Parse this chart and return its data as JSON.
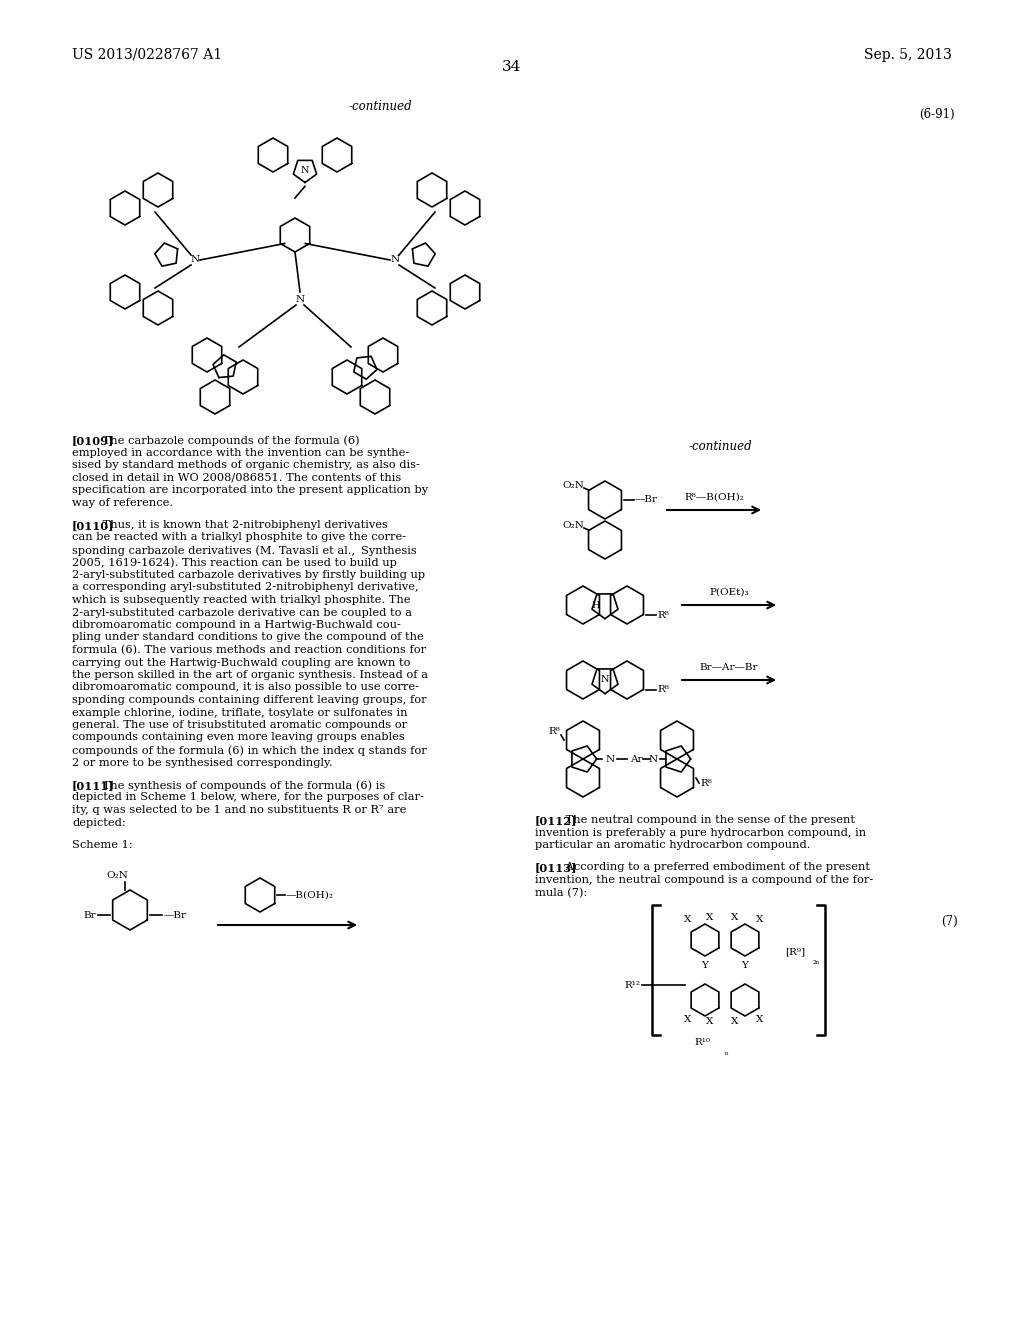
{
  "page_number": "34",
  "patent_number": "US 2013/0228767 A1",
  "patent_date": "Sep. 5, 2013",
  "continued_label_top": "-continued",
  "continued_label_right": "-continued",
  "compound_label_6_91": "(6-91)",
  "compound_label_7": "(7)",
  "scheme_label": "Scheme 1:",
  "background_color": "#ffffff",
  "text_color": "#000000",
  "para_0109_bold": "[0109]",
  "para_0109": "   The carbazole compounds of the formula (6) employed in accordance with the invention can be synthesised by standard methods of organic chemistry, as also disclosed in detail in WO 2008/086851. The contents of this specification are incorporated into the present application by way of reference.",
  "para_0110_bold": "[0110]",
  "para_0110": "   Thus, it is known that 2-nitrobiphenyl derivatives can be reacted with a trialkyl phosphite to give the corresponding carbazole derivatives (M. Tavasli et al., Synthesis 2005, 1619-1624). This reaction can be used to build up 2-aryl-substituted carbazole derivatives by firstly building up a corresponding aryl-substituted 2-nitrobiphenyl derivative, which is subsequently reacted with trialkyl phosphite. The 2-aryl-substituted carbazole derivative can be coupled to a dibromoaromatic compound in a Hartwig-Buchwald coupling under standard conditions to give the compound of the formula (6). The various methods and reaction conditions for carrying out the Hartwig-Buchwald coupling are known to the person skilled in the art of organic synthesis. Instead of a dibromoaromatic compound, it is also possible to use corresponding compounds containing different leaving groups, for example chlorine, iodine, triflate, tosylate or sulfonates in general. The use of trisubstituted aromatic compounds or compounds containing even more leaving groups enables compounds of the formula (6) in which the index q stands for 2 or more to be synthesised correspondingly.",
  "para_0111_bold": "[0111]",
  "para_0111": "   The synthesis of compounds of the formula (6) is depicted in Scheme 1 below, where, for the purposes of clarity, q was selected to be 1 and no substituents R or R7 are depicted:",
  "para_0112_bold": "[0112]",
  "para_0112": "   The neutral compound in the sense of the present invention is preferably a pure hydrocarbon compound, in particular an aromatic hydrocarbon compound.",
  "para_0113_bold": "[0113]",
  "para_0113": "   According to a preferred embodiment of the present invention, the neutral compound is a compound of the formula (7):"
}
